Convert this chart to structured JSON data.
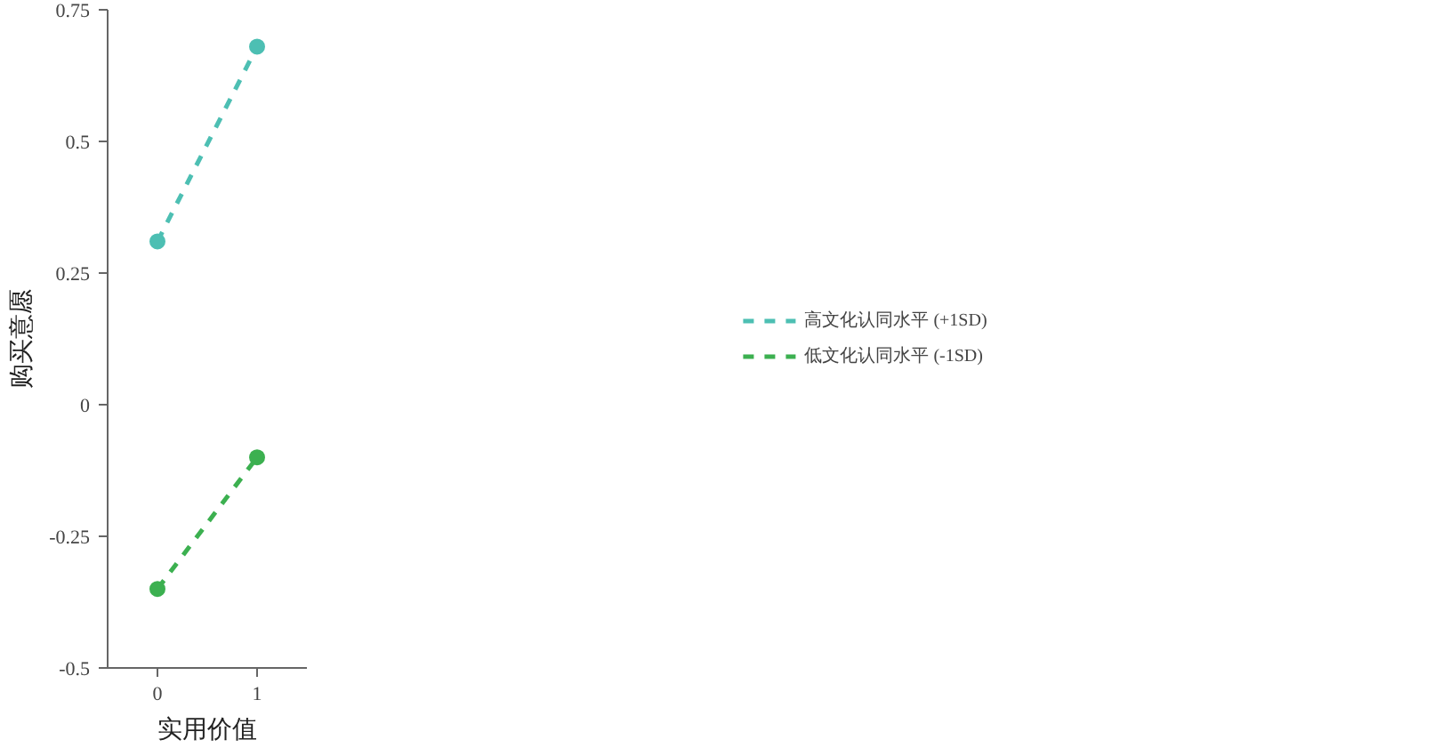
{
  "chart_data": {
    "type": "line",
    "xlabel": "实用价值",
    "ylabel": "购买意愿",
    "x": [
      0,
      1
    ],
    "xlim": [
      -0.5,
      1.5
    ],
    "xticks": [
      0,
      1
    ],
    "ylim": [
      -0.5,
      0.75
    ],
    "yticks": [
      {
        "value": -0.5,
        "label": "-0.5"
      },
      {
        "value": -0.25,
        "label": "-0.25"
      },
      0,
      {
        "value": 0.25,
        "label": "0.25"
      },
      {
        "value": 0.5,
        "label": "0.5"
      },
      {
        "value": 0.75,
        "label": "0.75"
      }
    ],
    "series": [
      {
        "name": "高文化认同水平 (+1SD)",
        "color": "#4dbfb3",
        "values": [
          0.31,
          0.68
        ],
        "line_style": "dashed"
      },
      {
        "name": "低文化认同水平 (-1SD)",
        "color": "#3cb050",
        "values": [
          -0.35,
          -0.1
        ],
        "line_style": "dashed"
      }
    ],
    "marker": "circle",
    "grid": false,
    "legend": "right"
  }
}
